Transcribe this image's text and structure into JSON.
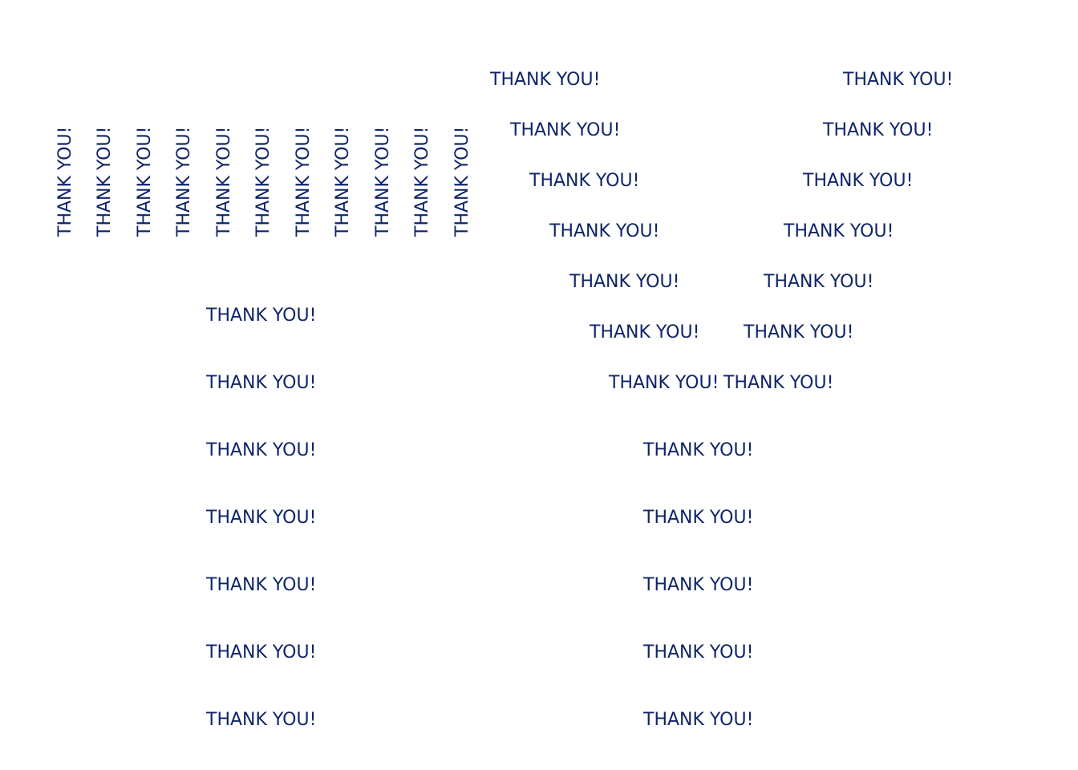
{
  "text_color": "#0f2569",
  "background": "#ffffff",
  "label": "THANK YOU!",
  "groups": {
    "vertical_row": {
      "items": [
        "THANK YOU!",
        "THANK YOU!",
        "THANK YOU!",
        "THANK YOU!",
        "THANK YOU!",
        "THANK YOU!",
        "THANK YOU!",
        "THANK YOU!",
        "THANK YOU!",
        "THANK YOU!",
        "THANK YOU!"
      ]
    },
    "left_column": {
      "items": [
        "THANK YOU!",
        "THANK YOU!",
        "THANK YOU!",
        "THANK YOU!",
        "THANK YOU!",
        "THANK YOU!",
        "THANK YOU!"
      ]
    },
    "v_shape_left_arm": {
      "items": [
        "THANK YOU!",
        "THANK YOU!",
        "THANK YOU!",
        "THANK YOU!",
        "THANK YOU!",
        "THANK YOU!",
        "THANK YOU!"
      ]
    },
    "v_shape_right_arm": {
      "items": [
        "THANK YOU!",
        "THANK YOU!",
        "THANK YOU!",
        "THANK YOU!",
        "THANK YOU!",
        "THANK YOU!",
        "THANK YOU!"
      ]
    },
    "v_shape_stem": {
      "items": [
        "THANK YOU!",
        "THANK YOU!",
        "THANK YOU!",
        "THANK YOU!",
        "THANK YOU!"
      ]
    }
  }
}
